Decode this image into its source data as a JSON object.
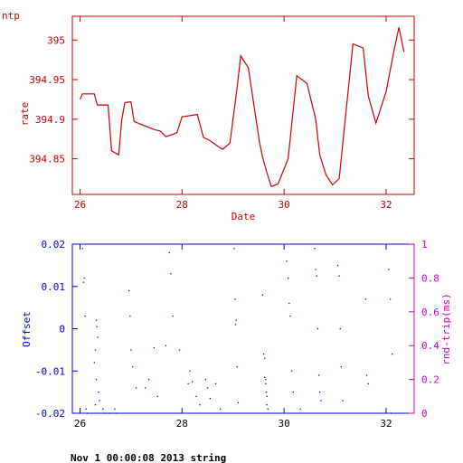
{
  "colors": {
    "top": "#cc0000",
    "offset": "#0000cc",
    "rtrip": "#cc00cc",
    "footer": "#000000"
  },
  "footer_text": "Nov  1 00:00:08 2013 string",
  "chart_data": [
    {
      "type": "line",
      "title": "ntp",
      "xlabel": "Date",
      "ylabel": "rate",
      "xlim": [
        25.85,
        32.55
      ],
      "ylim": [
        394.805,
        395.03
      ],
      "xticks": [
        26,
        28,
        30,
        32
      ],
      "yticks": [
        394.85,
        394.9,
        394.95,
        395
      ],
      "ytick_labels": [
        "394.85",
        "394.9",
        "394.95",
        "395"
      ],
      "grid": false,
      "series": [
        {
          "x": [
            26.0,
            26.05,
            26.28,
            26.34,
            26.55,
            26.62,
            26.7,
            26.76,
            26.82,
            26.88,
            27.0,
            27.06,
            27.14,
            27.45,
            27.58,
            27.68,
            27.78,
            27.9,
            28.0,
            28.3,
            28.42,
            28.55,
            28.72,
            28.8,
            28.94,
            29.08,
            29.15,
            29.3,
            29.45,
            29.52,
            29.58,
            29.66,
            29.75,
            29.88,
            30.08,
            30.25,
            30.45,
            30.62,
            30.7,
            30.82,
            30.95,
            31.08,
            31.2,
            31.35,
            31.55,
            31.65,
            31.8,
            32.0,
            32.15,
            32.25,
            32.35
          ],
          "y": [
            394.925,
            394.932,
            394.932,
            394.918,
            394.918,
            394.86,
            394.857,
            394.855,
            394.9,
            394.921,
            394.922,
            394.897,
            394.895,
            394.887,
            394.885,
            394.878,
            394.88,
            394.883,
            394.903,
            394.906,
            394.877,
            394.873,
            394.865,
            394.862,
            394.87,
            394.94,
            394.98,
            394.965,
            394.9,
            394.87,
            394.852,
            394.833,
            394.815,
            394.818,
            394.85,
            394.955,
            394.945,
            394.9,
            394.855,
            394.83,
            394.817,
            394.825,
            394.9,
            394.995,
            394.99,
            394.93,
            394.895,
            394.935,
            394.985,
            395.016,
            394.985
          ]
        }
      ]
    },
    {
      "type": "scatter",
      "xlabel": "",
      "ylabel": "Offset",
      "ylabel_right": "rnd-trip(ms)",
      "xlim": [
        25.85,
        32.55
      ],
      "ylim": [
        -0.02,
        0.02
      ],
      "ylim_right": [
        0,
        1
      ],
      "xticks": [
        26,
        28,
        30,
        32
      ],
      "yticks": [
        -0.02,
        -0.01,
        0,
        0.01,
        0.02
      ],
      "ytick_labels": [
        "-0.02",
        "-0.01",
        "0",
        "0.01",
        "0.02"
      ],
      "yticks_right": [
        0,
        0.2,
        0.4,
        0.6,
        0.8,
        1
      ],
      "ytick_labels_right": [
        "0",
        "0.2",
        "0.4",
        "0.6",
        "0.8",
        "1"
      ],
      "grid": false,
      "series": [
        {
          "x": [
            26.05,
            26.08,
            26.07,
            26.1,
            26.12,
            26.14,
            26.32,
            26.33,
            26.35,
            26.3,
            26.28,
            26.32,
            26.36,
            26.38,
            26.3,
            26.45,
            26.48,
            26.58,
            26.68,
            26.72,
            26.96,
            26.98,
            27.0,
            27.03,
            27.1,
            27.28,
            27.35,
            27.45,
            27.52,
            27.68,
            27.75,
            27.78,
            27.82,
            27.95,
            28.12,
            28.15,
            28.2,
            28.28,
            28.35,
            28.46,
            28.5,
            28.55,
            28.66,
            28.75,
            29.02,
            29.04,
            29.06,
            29.05,
            29.08,
            29.1,
            29.58,
            29.6,
            29.62,
            29.64,
            29.65,
            29.66,
            29.68,
            29.62,
            29.64,
            29.66,
            30.05,
            30.08,
            30.1,
            30.12,
            30.15,
            30.18,
            30.32,
            30.6,
            30.62,
            30.64,
            30.66,
            30.68,
            30.7,
            30.72,
            31.05,
            31.08,
            31.1,
            31.12,
            31.15,
            31.6,
            31.62,
            31.65,
            32.05,
            32.08,
            32.12,
            32.1
          ],
          "y": [
            0.019,
            0.012,
            0.011,
            0.003,
            -0.019,
            -0.02,
            0.002,
            0.0005,
            -0.002,
            -0.005,
            -0.008,
            -0.012,
            -0.015,
            -0.017,
            -0.018,
            -0.019,
            -0.02,
            -0.02,
            -0.019,
            -0.02,
            0.009,
            0.003,
            -0.005,
            -0.009,
            -0.014,
            -0.014,
            -0.012,
            -0.0045,
            -0.016,
            -0.004,
            0.018,
            0.013,
            0.003,
            -0.005,
            -0.013,
            -0.01,
            -0.0125,
            -0.016,
            -0.018,
            -0.012,
            -0.014,
            -0.0165,
            -0.013,
            -0.019,
            0.019,
            0.007,
            0.002,
            0.001,
            -0.009,
            -0.0175,
            0.008,
            -0.006,
            -0.007,
            -0.012,
            -0.015,
            -0.018,
            -0.019,
            -0.0115,
            -0.013,
            -0.016,
            0.016,
            0.012,
            0.006,
            0.003,
            -0.01,
            -0.015,
            -0.019,
            0.019,
            0.014,
            0.0125,
            0.0,
            -0.011,
            -0.015,
            -0.017,
            0.015,
            0.0125,
            0.0,
            -0.009,
            -0.017,
            0.007,
            -0.011,
            -0.013,
            0.014,
            0.007,
            -0.006,
            -0.02
          ]
        }
      ]
    }
  ]
}
